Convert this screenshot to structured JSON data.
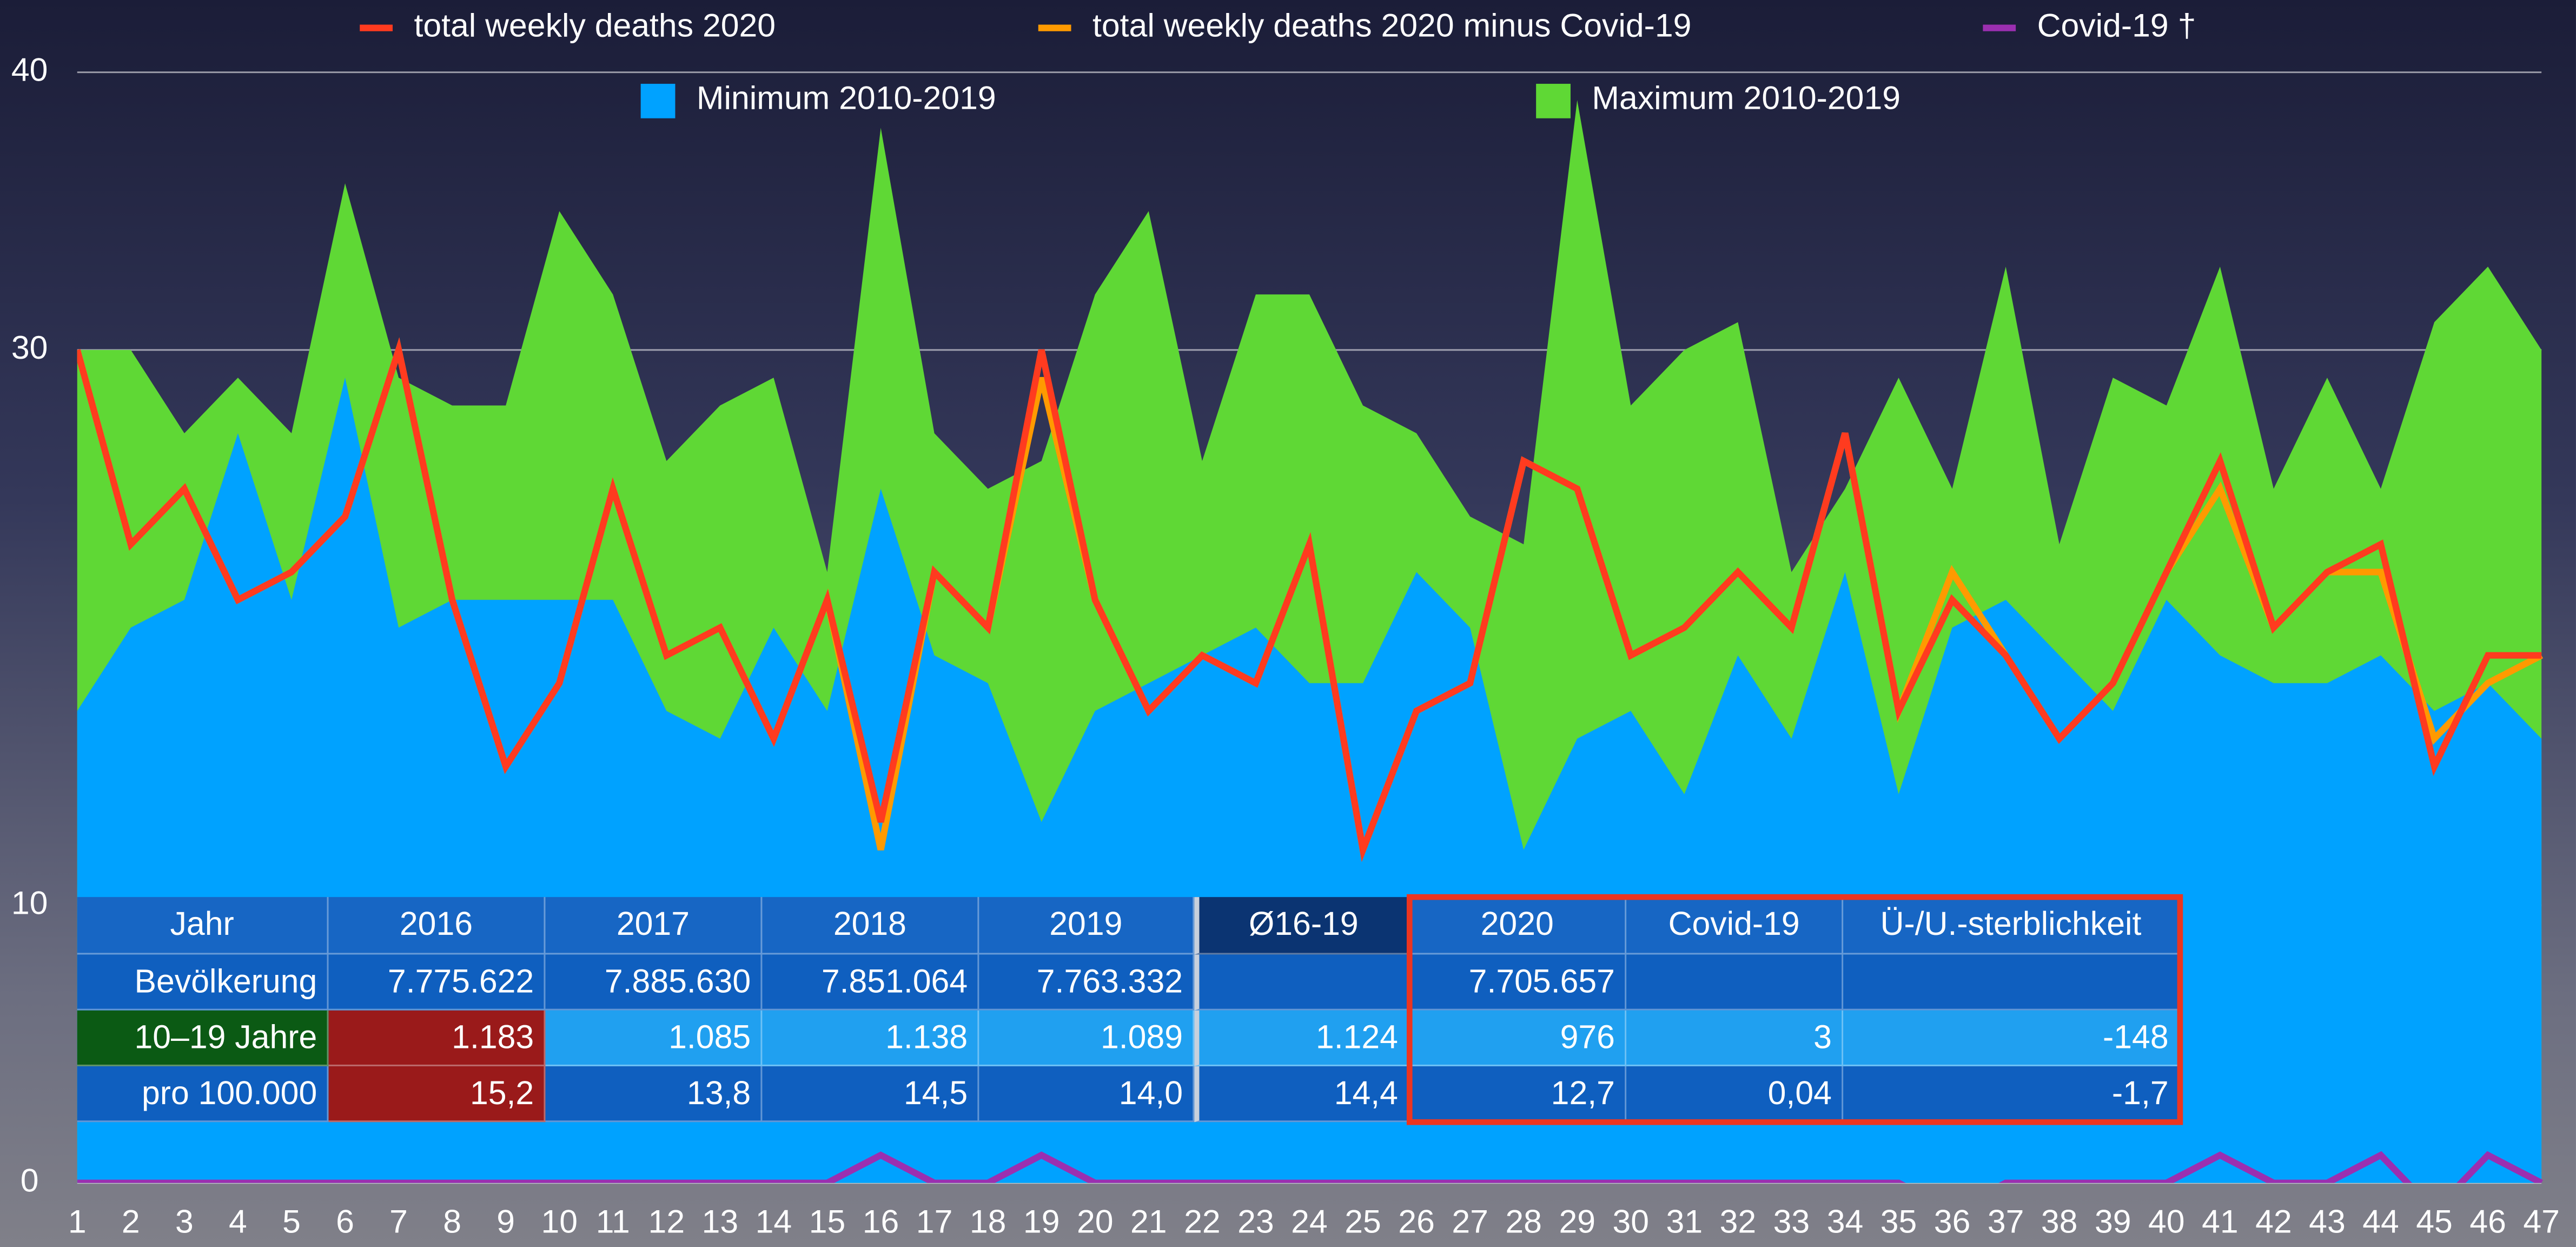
{
  "chart_data": {
    "type": "line",
    "x": [
      1,
      2,
      3,
      4,
      5,
      6,
      7,
      8,
      9,
      10,
      11,
      12,
      13,
      14,
      15,
      16,
      17,
      18,
      19,
      20,
      21,
      22,
      23,
      24,
      25,
      26,
      27,
      28,
      29,
      30,
      31,
      32,
      33,
      34,
      35,
      36,
      37,
      38,
      39,
      40,
      41,
      42,
      43,
      44,
      45,
      46,
      47
    ],
    "xlim": [
      1,
      47
    ],
    "ylim": [
      0,
      40
    ],
    "yticks": [
      0,
      10,
      30,
      40
    ],
    "grid": true,
    "series": [
      {
        "name": "total weekly deaths 2020",
        "color": "#ff3b1f",
        "type": "line",
        "values": [
          30,
          23,
          25,
          21,
          22,
          24,
          30,
          21,
          15,
          18,
          25,
          19,
          20,
          16,
          21,
          13,
          22,
          20,
          30,
          21,
          17,
          19,
          18,
          23,
          12,
          17,
          18,
          26,
          25,
          19,
          20,
          22,
          20,
          27,
          17,
          21,
          19,
          16,
          18,
          22,
          26,
          20,
          22,
          23,
          15,
          19,
          19
        ]
      },
      {
        "name": "total weekly deaths 2020 minus Covid-19",
        "color": "#ff9a00",
        "type": "line",
        "values": [
          30,
          23,
          25,
          21,
          22,
          24,
          30,
          21,
          15,
          18,
          25,
          19,
          20,
          16,
          21,
          12,
          22,
          20,
          29,
          21,
          17,
          19,
          18,
          23,
          12,
          17,
          18,
          26,
          25,
          19,
          20,
          22,
          20,
          27,
          17,
          22,
          19,
          16,
          18,
          22,
          25,
          20,
          22,
          22,
          16,
          18,
          19
        ]
      },
      {
        "name": "Covid-19 †",
        "color": "#9b2fb0",
        "type": "line",
        "values": [
          0,
          0,
          0,
          0,
          0,
          0,
          0,
          0,
          0,
          0,
          0,
          0,
          0,
          0,
          0,
          1,
          0,
          0,
          1,
          0,
          0,
          0,
          0,
          0,
          0,
          0,
          0,
          0,
          0,
          0,
          0,
          0,
          0,
          0,
          0,
          -1,
          0,
          0,
          0,
          0,
          1,
          0,
          0,
          1,
          -1,
          1,
          0
        ]
      },
      {
        "name": "Minimum 2010-2019",
        "color": "#00a2ff",
        "type": "area",
        "values": [
          17,
          20,
          21,
          27,
          21,
          29,
          20,
          21,
          21,
          21,
          21,
          17,
          16,
          20,
          17,
          25,
          19,
          18,
          13,
          17,
          18,
          19,
          20,
          18,
          18,
          22,
          20,
          12,
          16,
          17,
          14,
          19,
          16,
          22,
          14,
          20,
          21,
          19,
          17,
          21,
          19,
          18,
          18,
          19,
          17,
          18,
          16
        ]
      },
      {
        "name": "Maximum 2010-2019",
        "color": "#5fd835",
        "type": "area",
        "values": [
          30,
          30,
          27,
          29,
          27,
          36,
          29,
          28,
          28,
          35,
          32,
          26,
          28,
          29,
          22,
          38,
          27,
          25,
          26,
          32,
          35,
          26,
          32,
          32,
          28,
          27,
          24,
          23,
          39,
          28,
          30,
          31,
          22,
          25,
          29,
          25,
          33,
          23,
          29,
          28,
          33,
          25,
          29,
          25,
          31,
          33,
          30
        ]
      }
    ]
  },
  "table": {
    "header": [
      "Jahr",
      "2016",
      "2017",
      "2018",
      "2019",
      "Ø16-19",
      "2020",
      "Covid-19",
      "Ü-/U.-sterblichkeit"
    ],
    "rows": [
      [
        "Bevölkerung",
        "7.775.622",
        "7.885.630",
        "7.851.064",
        "7.763.332",
        null,
        "7.705.657",
        null,
        null
      ],
      [
        "10–19 Jahre",
        "1.183",
        "1.085",
        "1.138",
        "1.089",
        "1.124",
        "976",
        "3",
        "-148"
      ],
      [
        "pro 100.000",
        "15,2",
        "13,8",
        "14,5",
        "14,0",
        "14,4",
        "12,7",
        "0,04",
        "-1,7"
      ]
    ]
  }
}
